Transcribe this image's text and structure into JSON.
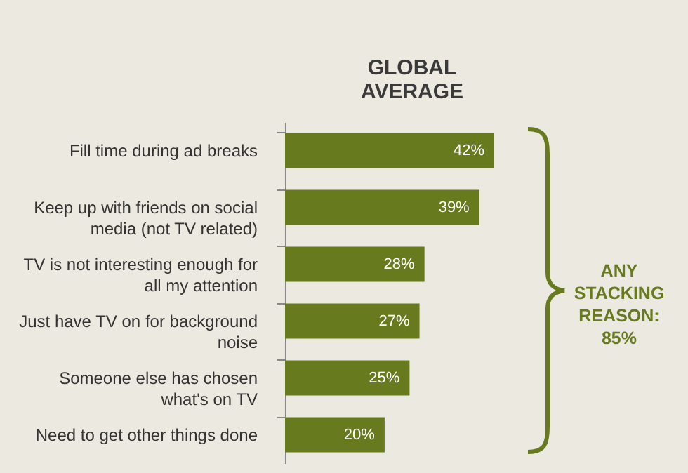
{
  "chart_data": {
    "type": "bar",
    "orientation": "horizontal",
    "title": "GLOBAL AVERAGE",
    "categories": [
      "Fill time during ad breaks",
      "Keep up with friends on social media (not TV related)",
      "TV is not interesting enough for all my attention",
      "Just have TV on for background noise",
      "Someone else has chosen what's on TV",
      "Need to get other things done"
    ],
    "values": [
      42,
      39,
      28,
      27,
      25,
      20
    ],
    "value_labels": [
      "42%",
      "39%",
      "28%",
      "27%",
      "25%",
      "20%"
    ],
    "color": "#677a1d",
    "annotations": [
      "ANY STACKING REASON: 85%"
    ]
  }
}
